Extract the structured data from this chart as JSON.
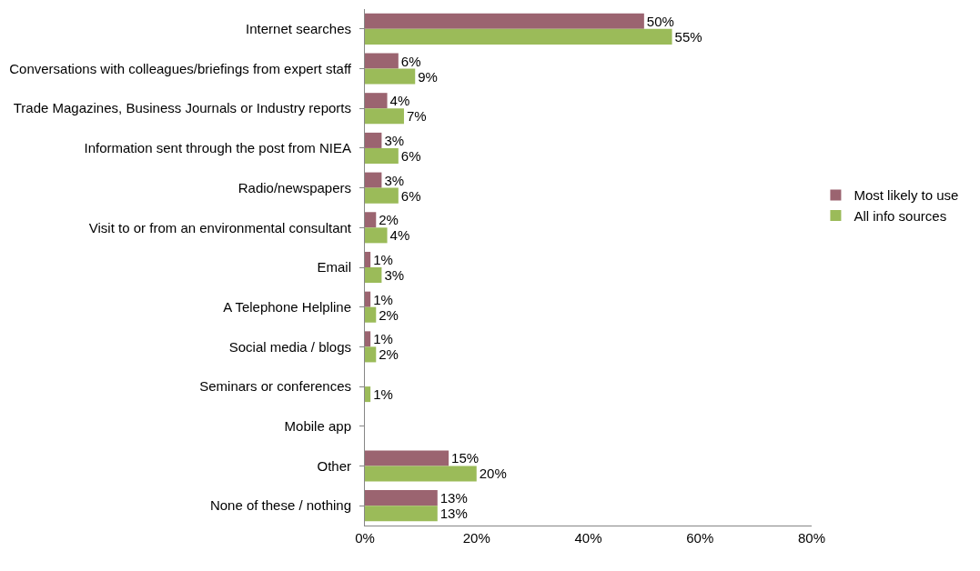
{
  "chart_data": {
    "type": "bar",
    "orientation": "horizontal",
    "categories": [
      "Internet searches",
      "Conversations with colleagues/briefings from expert staff",
      "Trade Magazines, Business Journals or Industry reports",
      "Information sent through the post from NIEA",
      "Radio/newspapers",
      "Visit to or from an environmental consultant",
      "Email",
      "A Telephone Helpline",
      "Social media / blogs",
      "Seminars or conferences",
      "Mobile app",
      "Other",
      "None of these / nothing"
    ],
    "series": [
      {
        "name": "Most likely to use",
        "color": "#9b6470",
        "values": [
          50,
          6,
          4,
          3,
          3,
          2,
          1,
          1,
          1,
          null,
          null,
          15,
          13
        ],
        "value_labels": [
          "50%",
          "6%",
          "4%",
          "3%",
          "3%",
          "2%",
          "1%",
          "1%",
          "1%",
          null,
          null,
          "15%",
          "13%"
        ]
      },
      {
        "name": "All info sources",
        "color": "#9bbb59",
        "values": [
          55,
          9,
          7,
          6,
          6,
          4,
          3,
          2,
          2,
          1,
          null,
          20,
          13
        ],
        "value_labels": [
          "55%",
          "9%",
          "7%",
          "6%",
          "6%",
          "4%",
          "3%",
          "2%",
          "2%",
          "1%",
          null,
          "20%",
          "13%"
        ]
      }
    ],
    "xlim": [
      0,
      80
    ],
    "xticks": [
      {
        "value": 0,
        "label": "0%"
      },
      {
        "value": 20,
        "label": "20%"
      },
      {
        "value": 40,
        "label": "40%"
      },
      {
        "value": 60,
        "label": "60%"
      },
      {
        "value": 80,
        "label": "80%"
      }
    ],
    "legend": "right"
  }
}
